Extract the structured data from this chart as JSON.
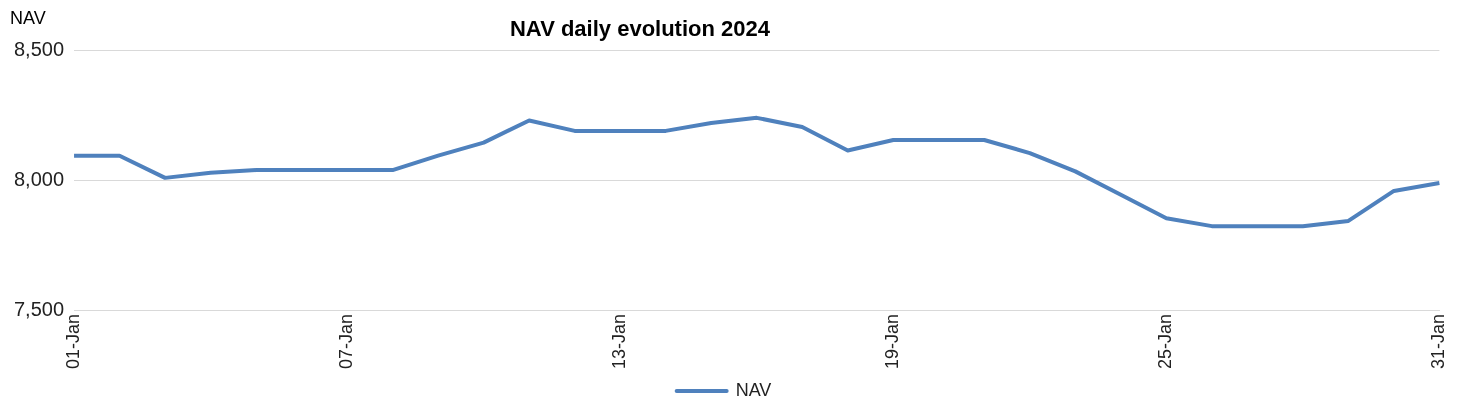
{
  "chart_data": {
    "type": "line",
    "title": "NAV daily evolution 2024",
    "ylabel": "NAV",
    "categories": [
      "01-Jan",
      null,
      null,
      null,
      null,
      null,
      "07-Jan",
      null,
      null,
      null,
      null,
      null,
      "13-Jan",
      null,
      null,
      null,
      null,
      null,
      "19-Jan",
      null,
      null,
      null,
      null,
      null,
      "25-Jan",
      null,
      null,
      null,
      null,
      null,
      "31-Jan"
    ],
    "series": [
      {
        "name": "NAV",
        "color": "#4f81bd",
        "values": [
          8095,
          8095,
          8010,
          8030,
          8040,
          8040,
          8040,
          8040,
          8095,
          8145,
          8230,
          8190,
          8190,
          8190,
          8220,
          8240,
          8205,
          8115,
          8155,
          8155,
          8155,
          8105,
          8035,
          7945,
          7855,
          7825,
          7825,
          7825,
          7845,
          7960,
          7990
        ]
      }
    ],
    "ylim": [
      7500,
      8500
    ],
    "yticks": [
      {
        "value": 7500,
        "label": "7,500"
      },
      {
        "value": 8000,
        "label": "8,000"
      },
      {
        "value": 8500,
        "label": "8,500"
      }
    ],
    "grid": "y",
    "legend": "bottom",
    "marker": "none",
    "line_style": "solid"
  }
}
